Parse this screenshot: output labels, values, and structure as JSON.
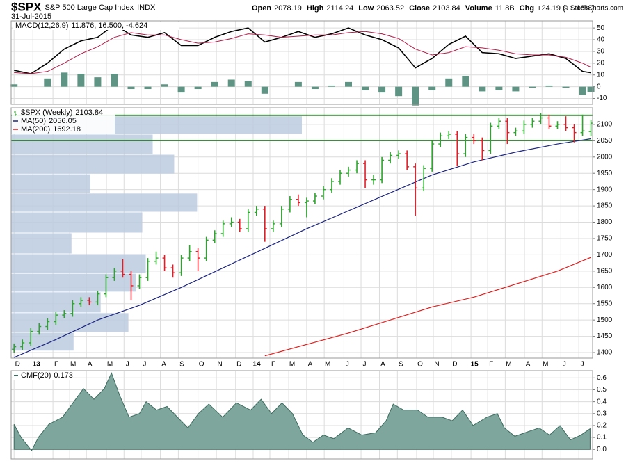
{
  "header": {
    "symbol": "$SPX",
    "name": "S&P 500 Large Cap Index",
    "exchange": "INDX",
    "date": "31-Jul-2015",
    "stats": [
      {
        "label": "Open",
        "value": 2078.19
      },
      {
        "label": "High",
        "value": 2114.24
      },
      {
        "label": "Low",
        "value": 2063.52
      },
      {
        "label": "Close",
        "value": 2103.84
      },
      {
        "label": "Volume",
        "value": "11.8B"
      },
      {
        "label": "Chg",
        "value": "+24.19 (+1.16%)"
      }
    ],
    "copyright": "© StockCharts.com"
  },
  "chart_data": [
    {
      "type": "macd",
      "legend": "MACD(12,26,9)",
      "separator": ",",
      "xlim": [
        -0.7,
        138.4
      ],
      "ylim": [
        -15,
        56
      ],
      "yticks": [
        -10,
        0,
        10,
        20,
        30,
        40,
        50
      ],
      "grid": true,
      "x": [
        0,
        4,
        8,
        12,
        16,
        20,
        24,
        28,
        32,
        36,
        40,
        44,
        48,
        52,
        56,
        60,
        64,
        68,
        72,
        76,
        80,
        84,
        88,
        92,
        96,
        100,
        104,
        108,
        112,
        116,
        120,
        124,
        128,
        132,
        136,
        138
      ],
      "series": [
        {
          "kind": "line",
          "color": "#000000",
          "values": [
            14,
            11,
            20,
            32,
            39,
            42,
            53,
            44,
            42,
            46,
            35,
            35,
            42,
            47,
            50,
            38,
            42,
            47,
            42,
            45,
            50,
            44,
            40,
            33,
            16,
            24,
            36,
            43,
            29,
            28,
            24,
            26,
            28,
            24,
            13,
            11.876
          ],
          "legend_value": 11.876
        },
        {
          "kind": "line",
          "color": "#b01c48",
          "values": [
            12,
            11,
            13,
            20,
            28,
            34,
            42,
            46,
            44,
            44,
            40,
            37,
            38,
            41,
            45,
            44,
            42,
            43,
            44,
            44,
            46,
            47,
            45,
            41,
            32,
            27,
            29,
            34,
            33,
            31,
            28,
            27,
            27,
            25,
            20,
            16.5
          ],
          "legend_value": 16.5,
          "legend_label": "16.500"
        },
        {
          "kind": "histogram",
          "color": "#5f9484",
          "values": [
            2,
            0,
            7,
            12,
            11,
            8,
            11,
            -2,
            -2,
            2,
            -5,
            -2,
            4,
            6,
            5,
            -6,
            0,
            4,
            -2,
            1,
            4,
            -3,
            -5,
            -8,
            -16,
            -3,
            7,
            9,
            -4,
            -3,
            -4,
            -1,
            1,
            -1,
            -7,
            -4.624
          ],
          "legend_value": -4.624
        }
      ]
    },
    {
      "type": "ohlc",
      "legend": "$SPX (Weekly)",
      "legend_value": 2103.84,
      "xlim": [
        -0.7,
        138.4
      ],
      "ylim": [
        1383,
        2151
      ],
      "yticks": [
        1400,
        1450,
        1500,
        1550,
        1600,
        1650,
        1700,
        1750,
        1800,
        1850,
        1900,
        1950,
        2000,
        2050,
        2100
      ],
      "grid": true,
      "xticks": [
        {
          "value": 0,
          "label": "D"
        },
        {
          "value": 4.5,
          "label": "13"
        },
        {
          "value": 9.3,
          "label": "F"
        },
        {
          "value": 13.3,
          "label": "M"
        },
        {
          "value": 17.3,
          "label": "A"
        },
        {
          "value": 22.1,
          "label": "M"
        },
        {
          "value": 26.3,
          "label": "J"
        },
        {
          "value": 30.4,
          "label": "J"
        },
        {
          "value": 35,
          "label": "A"
        },
        {
          "value": 39.3,
          "label": "S"
        },
        {
          "value": 44,
          "label": "O"
        },
        {
          "value": 48.4,
          "label": "N"
        },
        {
          "value": 53,
          "label": "D"
        },
        {
          "value": 57.2,
          "label": "14"
        },
        {
          "value": 61.2,
          "label": "F"
        },
        {
          "value": 65.7,
          "label": "M"
        },
        {
          "value": 70,
          "label": "A"
        },
        {
          "value": 74.2,
          "label": "M"
        },
        {
          "value": 78.9,
          "label": "J"
        },
        {
          "value": 83,
          "label": "J"
        },
        {
          "value": 87.4,
          "label": "A"
        },
        {
          "value": 91.7,
          "label": "S"
        },
        {
          "value": 96.3,
          "label": "O"
        },
        {
          "value": 100.3,
          "label": "N"
        },
        {
          "value": 104.6,
          "label": "D"
        },
        {
          "value": 109.3,
          "label": "15"
        },
        {
          "value": 113.3,
          "label": "F"
        },
        {
          "value": 117.5,
          "label": "M"
        },
        {
          "value": 122.1,
          "label": "A"
        },
        {
          "value": 126.3,
          "label": "M"
        },
        {
          "value": 130.8,
          "label": "J"
        },
        {
          "value": 135.1,
          "label": "J"
        }
      ],
      "x": [
        0,
        2,
        4,
        6,
        8,
        10,
        12,
        14,
        16,
        18,
        20,
        22,
        24,
        26,
        28,
        30,
        32,
        34,
        36,
        38,
        40,
        42,
        44,
        46,
        48,
        50,
        52,
        54,
        56,
        58,
        60,
        62,
        64,
        66,
        68,
        70,
        72,
        74,
        76,
        78,
        80,
        82,
        84,
        86,
        88,
        90,
        92,
        94,
        96,
        98,
        100,
        102,
        104,
        106,
        108,
        110,
        112,
        114,
        116,
        118,
        120,
        122,
        124,
        126,
        128,
        130,
        132,
        134,
        136,
        138
      ],
      "open": [
        1410,
        1418,
        1430,
        1465,
        1480,
        1495,
        1515,
        1520,
        1550,
        1560,
        1555,
        1580,
        1630,
        1650,
        1640,
        1605,
        1630,
        1680,
        1690,
        1660,
        1645,
        1690,
        1710,
        1690,
        1745,
        1765,
        1795,
        1800,
        1780,
        1830,
        1840,
        1780,
        1795,
        1840,
        1870,
        1860,
        1865,
        1880,
        1900,
        1925,
        1950,
        1960,
        1980,
        1930,
        1930,
        1990,
        2005,
        2010,
        1970,
        1905,
        1965,
        2040,
        2065,
        2070,
        2010,
        2060,
        2050,
        2020,
        2095,
        2110,
        2075,
        2080,
        2100,
        2110,
        2120,
        2095,
        2100,
        2090,
        2075,
        2078.19
      ],
      "high": [
        1428,
        1440,
        1475,
        1490,
        1505,
        1525,
        1530,
        1560,
        1570,
        1570,
        1590,
        1640,
        1660,
        1687,
        1650,
        1640,
        1690,
        1710,
        1700,
        1670,
        1700,
        1730,
        1720,
        1755,
        1775,
        1805,
        1815,
        1810,
        1840,
        1850,
        1850,
        1805,
        1850,
        1880,
        1885,
        1875,
        1890,
        1910,
        1935,
        1960,
        1970,
        1990,
        1990,
        1945,
        2000,
        2015,
        2020,
        2020,
        1980,
        1975,
        2050,
        2075,
        2080,
        2080,
        2070,
        2070,
        2060,
        2105,
        2120,
        2120,
        2090,
        2112,
        2120,
        2135,
        2130,
        2110,
        2125,
        2100,
        2130,
        2114.24
      ],
      "low": [
        1400,
        1408,
        1420,
        1455,
        1470,
        1485,
        1505,
        1510,
        1540,
        1545,
        1545,
        1570,
        1620,
        1630,
        1560,
        1595,
        1620,
        1670,
        1650,
        1630,
        1635,
        1680,
        1650,
        1680,
        1735,
        1755,
        1785,
        1770,
        1770,
        1820,
        1740,
        1770,
        1785,
        1830,
        1850,
        1815,
        1855,
        1870,
        1890,
        1915,
        1940,
        1950,
        1905,
        1915,
        1920,
        1980,
        1995,
        1960,
        1820,
        1895,
        1955,
        2030,
        2055,
        1972,
        2000,
        2040,
        1990,
        2010,
        2085,
        2040,
        2065,
        2070,
        2090,
        2100,
        2085,
        2085,
        2080,
        2045,
        2065,
        2063.52
      ],
      "close": [
        1418,
        1430,
        1465,
        1480,
        1495,
        1515,
        1520,
        1550,
        1560,
        1555,
        1580,
        1630,
        1650,
        1640,
        1605,
        1630,
        1680,
        1690,
        1660,
        1645,
        1690,
        1710,
        1690,
        1745,
        1765,
        1795,
        1800,
        1780,
        1830,
        1840,
        1780,
        1795,
        1840,
        1870,
        1860,
        1865,
        1880,
        1900,
        1925,
        1950,
        1960,
        1980,
        1930,
        1930,
        1990,
        2005,
        2010,
        1970,
        1905,
        1965,
        2040,
        2065,
        2070,
        2010,
        2060,
        2050,
        2020,
        2095,
        2110,
        2075,
        2080,
        2100,
        2110,
        2120,
        2095,
        2100,
        2090,
        2075,
        2080,
        2103.84
      ],
      "up_color": "#2fa32f",
      "down_color": "#dd1f2a",
      "lines": [
        {
          "name": "MA(50)",
          "color": "#1c2580",
          "x": [
            0,
            10,
            20,
            30,
            40,
            50,
            60,
            70,
            80,
            90,
            100,
            110,
            120,
            130,
            138
          ],
          "values": [
            1385,
            1440,
            1500,
            1545,
            1600,
            1660,
            1720,
            1780,
            1835,
            1890,
            1945,
            1985,
            2015,
            2040,
            2056.05
          ],
          "legend_value": 2056.05
        },
        {
          "name": "MA(200)",
          "color": "#e01c1c",
          "x": [
            60,
            80,
            100,
            110,
            120,
            130,
            138
          ],
          "values": [
            1390,
            1460,
            1540,
            1570,
            1610,
            1650,
            1692.18
          ],
          "legend_value": 1692.18
        }
      ],
      "hlines": {
        "color": "#146414",
        "values": [
          2128,
          2051
        ]
      },
      "volume_by_price": {
        "color": "#bccbdf",
        "edges": [
          2126,
          2070,
          2008,
          1948,
          1889,
          1831,
          1767,
          1703,
          1643,
          1586,
          1522,
          1462,
          1405
        ],
        "values": [
          419,
          204,
          235,
          114,
          268,
          189,
          87,
          194,
          180,
          129,
          169,
          90
        ]
      }
    },
    {
      "type": "area",
      "legend": "CMF(20)",
      "legend_value": 0.173,
      "color": "#7ea69c",
      "line_color": "#3c6a5e",
      "xlim": [
        -0.7,
        138.4
      ],
      "ylim": [
        -0.08,
        0.66
      ],
      "grid": true,
      "yticks": [
        {
          "value": 0,
          "label": "0.0"
        },
        0.1,
        0.2,
        0.3,
        0.4,
        0.5,
        0.6
      ],
      "x": [
        0,
        1.7,
        4.2,
        5.8,
        8.3,
        11.6,
        14.1,
        16.6,
        19.1,
        21.6,
        23.3,
        25.3,
        27.5,
        30,
        31.6,
        34.1,
        36.6,
        39.1,
        41.6,
        44.1,
        46.6,
        49.9,
        53.2,
        56.6,
        59.1,
        61.6,
        64.1,
        66.6,
        69.1,
        71.5,
        74,
        76.5,
        79.9,
        83.2,
        86.5,
        89,
        90.7,
        93.2,
        96.5,
        99,
        102.4,
        104.8,
        107.3,
        109.8,
        113.1,
        115.6,
        117.3,
        119.8,
        123.1,
        125.6,
        128.1,
        130.6,
        133.1,
        135.6,
        137.8
      ],
      "values": [
        0.21,
        0.1,
        -0.01,
        0.1,
        0.21,
        0.27,
        0.39,
        0.51,
        0.42,
        0.51,
        0.64,
        0.45,
        0.27,
        0.3,
        0.4,
        0.33,
        0.36,
        0.27,
        0.18,
        0.3,
        0.38,
        0.27,
        0.39,
        0.33,
        0.42,
        0.3,
        0.39,
        0.3,
        0.12,
        0.06,
        0.12,
        0.09,
        0.18,
        0.12,
        0.14,
        0.24,
        0.38,
        0.33,
        0.33,
        0.27,
        0.27,
        0.24,
        0.33,
        0.2,
        0.27,
        0.3,
        0.18,
        0.11,
        0.15,
        0.18,
        0.12,
        0.2,
        0.08,
        0.12,
        0.173
      ]
    }
  ]
}
